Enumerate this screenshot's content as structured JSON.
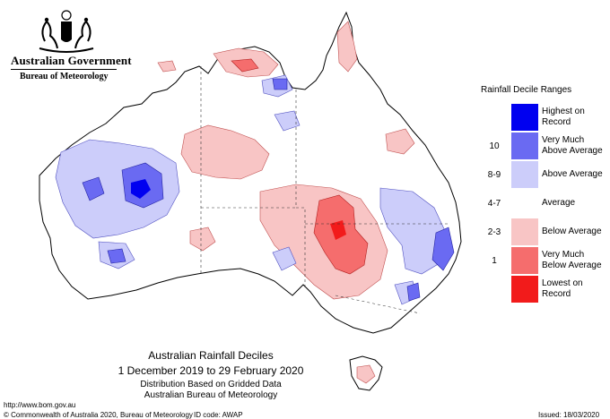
{
  "header": {
    "government": "Australian Government",
    "bureau": "Bureau of Meteorology"
  },
  "legend": {
    "title": "Rainfall Decile Ranges",
    "items": [
      {
        "range": "",
        "label": "Highest on Record",
        "color": "#0000f0"
      },
      {
        "range": "10",
        "label": "Very Much Above Average",
        "color": "#6a6af2"
      },
      {
        "range": "8-9",
        "label": "Above Average",
        "color": "#cccdfa"
      },
      {
        "range": "4-7",
        "label": "Average",
        "color": "#ffffff"
      },
      {
        "range": "2-3",
        "label": "Below Average",
        "color": "#f8c5c5"
      },
      {
        "range": "1",
        "label": "Very Much Below Average",
        "color": "#f56d6d"
      },
      {
        "range": "",
        "label": "Lowest on Record",
        "color": "#f21b1b"
      }
    ]
  },
  "map": {
    "title": "Australian Rainfall Deciles",
    "period": "1 December 2019 to 29 February 2020",
    "method": "Distribution Based on Gridded Data",
    "source": "Australian Bureau of Meteorology"
  },
  "footer": {
    "url": "http://www.bom.gov.au",
    "copyright": "© Commonwealth of Australia 2020, Bureau of Meteorology",
    "id_code": "ID code: AWAP",
    "issued": "Issued: 18/03/2020"
  }
}
